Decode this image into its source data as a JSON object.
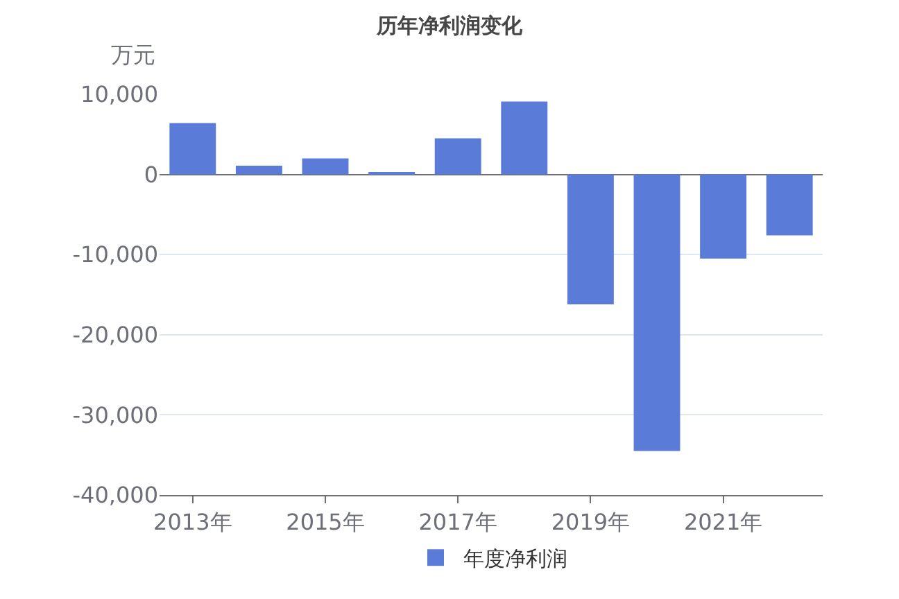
{
  "chart_data": {
    "type": "bar",
    "title": "历年净利润变化",
    "ylabel": "万元",
    "categories": [
      "2013年",
      null,
      "2015年",
      null,
      "2017年",
      null,
      "2019年",
      null,
      "2021年",
      null
    ],
    "series": [
      {
        "name": "年度净利润",
        "color": "#5b7bd9",
        "values": [
          6400,
          1100,
          2000,
          200,
          4500,
          9100,
          -16200,
          -34500,
          -10500,
          -7600
        ]
      }
    ],
    "ylim": [
      -40000,
      10000
    ],
    "yticks": [
      {
        "value": -40000,
        "label": "-40,000"
      },
      {
        "value": -30000,
        "label": "-30,000"
      },
      {
        "value": -20000,
        "label": "-20,000"
      },
      {
        "value": -10000,
        "label": "-10,000"
      },
      0,
      {
        "value": 10000,
        "label": "10,000"
      }
    ],
    "grid": "y",
    "legend": "bottom"
  }
}
